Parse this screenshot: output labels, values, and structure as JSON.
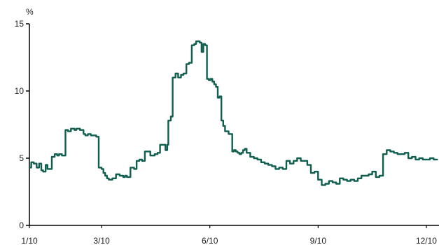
{
  "chart_data": {
    "type": "line",
    "title": "",
    "xlabel": "",
    "ylabel": "%",
    "x_tick_labels": [
      "1/10",
      "3/10",
      "6/10",
      "9/10",
      "12/10"
    ],
    "x_tick_months": [
      0,
      2,
      5,
      8,
      11
    ],
    "x_range_months": [
      0,
      11.35
    ],
    "y_ticks": [
      0,
      5,
      10,
      15
    ],
    "ylim": [
      0,
      15
    ],
    "grid": false,
    "legend": "none",
    "line_color": "#0f5e4e",
    "series": [
      {
        "x_months": [
          0,
          0.05,
          0.12,
          0.2,
          0.27,
          0.33,
          0.38,
          0.45,
          0.5,
          0.55,
          0.62,
          0.7,
          0.77,
          0.82,
          0.9,
          1.0,
          1.07,
          1.15,
          1.25,
          1.3,
          1.4,
          1.45,
          1.5,
          1.55,
          1.62,
          1.7,
          1.77,
          1.85,
          1.92,
          2.0,
          2.05,
          2.1,
          2.15,
          2.2,
          2.3,
          2.4,
          2.45,
          2.5,
          2.6,
          2.65,
          2.7,
          2.8,
          2.9,
          2.97,
          3.05,
          3.12,
          3.2,
          3.27,
          3.35,
          3.42,
          3.47,
          3.55,
          3.62,
          3.7,
          3.77,
          3.82,
          3.85,
          3.92,
          3.97,
          4.05,
          4.12,
          4.2,
          4.27,
          4.35,
          4.42,
          4.5,
          4.57,
          4.62,
          4.68,
          4.72,
          4.77,
          4.82,
          4.87,
          4.92,
          4.97,
          5.02,
          5.07,
          5.12,
          5.17,
          5.22,
          5.27,
          5.32,
          5.37,
          5.42,
          5.47,
          5.52,
          5.57,
          5.62,
          5.67,
          5.72,
          5.77,
          5.82,
          5.87,
          5.92,
          5.97,
          6.02,
          6.12,
          6.22,
          6.32,
          6.42,
          6.52,
          6.62,
          6.72,
          6.82,
          6.92,
          7.02,
          7.12,
          7.22,
          7.32,
          7.42,
          7.52,
          7.6,
          7.7,
          7.8,
          7.9,
          8.0,
          8.1,
          8.2,
          8.3,
          8.4,
          8.5,
          8.6,
          8.7,
          8.8,
          8.9,
          9.0,
          9.1,
          9.2,
          9.3,
          9.4,
          9.5,
          9.6,
          9.7,
          9.8,
          9.9,
          10.0,
          10.1,
          10.2,
          10.3,
          10.4,
          10.5,
          10.6,
          10.7,
          10.8,
          10.9,
          11.0,
          11.1,
          11.2,
          11.3
        ],
        "values": [
          4.3,
          4.7,
          4.6,
          4.3,
          4.6,
          4.1,
          4.0,
          4.5,
          4.2,
          4.2,
          5.1,
          5.3,
          5.2,
          5.3,
          5.2,
          7.1,
          7.0,
          7.2,
          7.1,
          7.2,
          7.1,
          7.1,
          6.8,
          6.7,
          6.8,
          6.7,
          6.7,
          6.6,
          4.3,
          4.2,
          3.9,
          3.7,
          3.5,
          3.4,
          3.5,
          3.8,
          3.8,
          3.7,
          3.6,
          3.7,
          3.6,
          4.3,
          4.2,
          4.8,
          4.9,
          4.8,
          5.5,
          5.5,
          5.2,
          5.2,
          5.3,
          5.4,
          6.0,
          6.0,
          5.6,
          6.0,
          7.8,
          8.1,
          11.0,
          11.3,
          11.0,
          11.2,
          11.3,
          12.0,
          12.1,
          13.4,
          13.5,
          13.7,
          13.7,
          13.6,
          12.9,
          13.5,
          13.4,
          10.9,
          10.8,
          10.9,
          10.7,
          10.5,
          10.3,
          9.5,
          9.6,
          7.8,
          7.4,
          7.0,
          7.0,
          6.8,
          6.8,
          5.5,
          5.6,
          5.5,
          5.4,
          5.3,
          5.4,
          5.6,
          5.7,
          5.4,
          5.1,
          5.0,
          4.9,
          4.7,
          4.6,
          4.5,
          4.4,
          4.2,
          4.3,
          4.2,
          4.8,
          4.6,
          4.8,
          5.0,
          4.8,
          4.8,
          4.5,
          3.9,
          4.0,
          3.4,
          3.0,
          3.1,
          3.3,
          3.2,
          3.1,
          3.5,
          3.4,
          3.3,
          3.4,
          3.3,
          3.5,
          3.7,
          3.7,
          3.8,
          4.0,
          3.6,
          3.7,
          5.3,
          5.6,
          5.5,
          5.4,
          5.3,
          5.3,
          5.4,
          5.0,
          5.1,
          4.9,
          5.0,
          4.9,
          4.9,
          5.0,
          4.9,
          4.9
        ]
      }
    ]
  }
}
